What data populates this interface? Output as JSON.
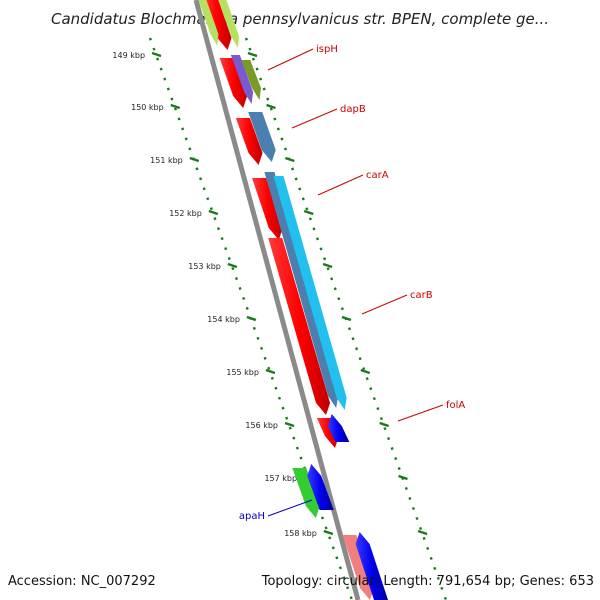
{
  "title": "Candidatus Blochmannia pennsylvanicus str. BPEN, complete ge...",
  "footer": {
    "accession": "Accession: NC_007292",
    "info": "Topology: circular; Length: 791,654 bp; Genes: 653"
  },
  "ticks": [
    "149 kbp",
    "150 kbp",
    "151 kbp",
    "152 kbp",
    "153 kbp",
    "154 kbp",
    "155 kbp",
    "156 kbp",
    "157 kbp",
    "158 kbp"
  ],
  "genes": [
    {
      "label": "ispH",
      "color": "#cc0000"
    },
    {
      "label": "dapB",
      "color": "#cc0000"
    },
    {
      "label": "carA",
      "color": "#cc0000"
    },
    {
      "label": "carB",
      "color": "#cc0000"
    },
    {
      "label": "folA",
      "color": "#cc0000"
    },
    {
      "label": "apaH",
      "color": "#0000cc"
    }
  ],
  "colors": {
    "backbone": "#8a8a8a",
    "tick": "#1a7a1a",
    "cds_red": "#ff0000",
    "cds_pink": "#f08080",
    "cds_blue": "#0000ee",
    "cds_steel": "#4a7fb0",
    "cds_cyan": "#22c0ee",
    "cds_purple": "#7a5ad0",
    "cds_olive": "#7a9a2a",
    "cds_green": "#33cc33",
    "cds_yellowgreen": "#b8e060"
  }
}
